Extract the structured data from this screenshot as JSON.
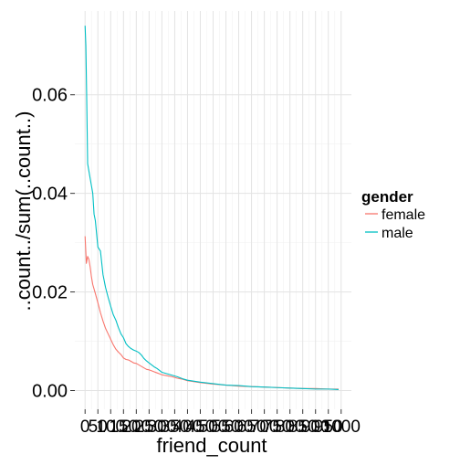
{
  "chart_data": {
    "type": "line",
    "title": "",
    "xlabel": "friend_count",
    "ylabel": "..count../sum(..count..)",
    "xlim": [
      -40,
      1040
    ],
    "ylim": [
      -0.0038,
      0.077
    ],
    "x_ticks": [
      0,
      50,
      100,
      150,
      200,
      250,
      300,
      350,
      400,
      450,
      500,
      550,
      600,
      650,
      700,
      750,
      800,
      850,
      900,
      950,
      1000
    ],
    "x_tick_labels": [
      "0",
      "50",
      "100",
      "150",
      "200",
      "250",
      "300",
      "350",
      "400",
      "450",
      "500",
      "550",
      "600",
      "650",
      "700",
      "750",
      "800",
      "850",
      "900",
      "950",
      "1000"
    ],
    "y_ticks": [
      0,
      0.02,
      0.04,
      0.06
    ],
    "y_tick_labels": [
      "0.00",
      "0.02",
      "0.04",
      "0.06"
    ],
    "grid": true,
    "legend": {
      "title": "gender",
      "placement": "right"
    },
    "series": [
      {
        "name": "female",
        "color": "#f8766d",
        "x": [
          0,
          5,
          10,
          15,
          20,
          25,
          30,
          40,
          50,
          60,
          70,
          80,
          90,
          100,
          110,
          120,
          130,
          140,
          150,
          160,
          170,
          180,
          190,
          200,
          210,
          220,
          230,
          240,
          250,
          260,
          270,
          280,
          290,
          300,
          320,
          340,
          360,
          380,
          400,
          450,
          500,
          550,
          600,
          650,
          700,
          750,
          800,
          850,
          900,
          950,
          990
        ],
        "y": [
          0.0313,
          0.0258,
          0.0272,
          0.0266,
          0.025,
          0.023,
          0.0215,
          0.0197,
          0.0178,
          0.0158,
          0.0141,
          0.0126,
          0.0115,
          0.0104,
          0.0093,
          0.0084,
          0.0078,
          0.0073,
          0.0066,
          0.0063,
          0.0062,
          0.0059,
          0.0056,
          0.0055,
          0.0052,
          0.0049,
          0.0046,
          0.0043,
          0.0042,
          0.004,
          0.0038,
          0.0036,
          0.0034,
          0.0032,
          0.003,
          0.0028,
          0.0025,
          0.0023,
          0.002,
          0.0016,
          0.0013,
          0.0011,
          0.0009,
          0.0008,
          0.0007,
          0.0006,
          0.0005,
          0.0004,
          0.0004,
          0.0003,
          0.0003
        ]
      },
      {
        "name": "male",
        "color": "#00bfc4",
        "x": [
          0,
          3,
          6,
          10,
          15,
          20,
          25,
          30,
          35,
          40,
          50,
          60,
          70,
          80,
          90,
          100,
          110,
          120,
          130,
          140,
          150,
          160,
          170,
          180,
          190,
          200,
          210,
          220,
          230,
          240,
          250,
          260,
          270,
          280,
          290,
          300,
          320,
          340,
          360,
          380,
          400,
          450,
          500,
          550,
          600,
          650,
          700,
          750,
          800,
          850,
          900,
          950,
          990
        ],
        "y": [
          0.074,
          0.07,
          0.0605,
          0.046,
          0.0445,
          0.043,
          0.0415,
          0.04,
          0.0358,
          0.0345,
          0.0291,
          0.0283,
          0.0235,
          0.0209,
          0.0189,
          0.0171,
          0.0154,
          0.0143,
          0.0128,
          0.0115,
          0.0107,
          0.0095,
          0.0089,
          0.0085,
          0.0082,
          0.008,
          0.0077,
          0.0072,
          0.0065,
          0.006,
          0.0056,
          0.0052,
          0.0048,
          0.0045,
          0.0041,
          0.0037,
          0.0034,
          0.0031,
          0.0028,
          0.0024,
          0.0021,
          0.0017,
          0.0014,
          0.0011,
          0.001,
          0.0008,
          0.0007,
          0.0006,
          0.0005,
          0.0004,
          0.0003,
          0.0003,
          0.0002
        ]
      }
    ]
  }
}
